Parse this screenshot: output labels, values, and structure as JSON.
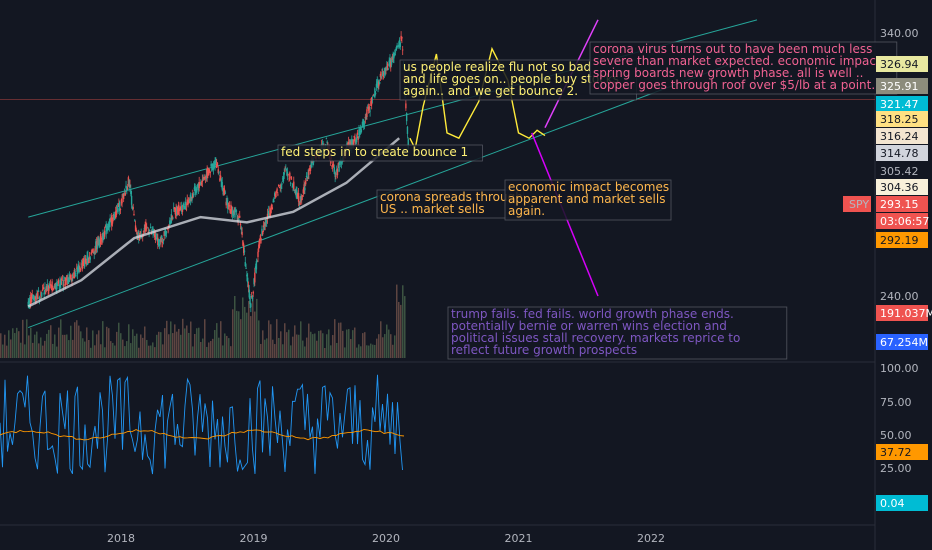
{
  "chart_data": [
    {
      "type": "candlestick",
      "symbol": "SPY",
      "x_ticks": [
        "2018",
        "2019",
        "2020",
        "2021",
        "2022"
      ],
      "y_ticks": [
        240.0,
        340.0
      ],
      "ylim": [
        228,
        346
      ],
      "series": [
        {
          "name": "SPY",
          "values": [
            [
              2017.3,
              238
            ],
            [
              2017.45,
              243
            ],
            [
              2017.6,
              246
            ],
            [
              2017.75,
              254
            ],
            [
              2017.9,
              266
            ],
            [
              2018.0,
              275
            ],
            [
              2018.06,
              284
            ],
            [
              2018.12,
              262
            ],
            [
              2018.2,
              266
            ],
            [
              2018.3,
              260
            ],
            [
              2018.4,
              272
            ],
            [
              2018.5,
              275
            ],
            [
              2018.6,
              283
            ],
            [
              2018.72,
              291
            ],
            [
              2018.8,
              275
            ],
            [
              2018.9,
              269
            ],
            [
              2018.98,
              236
            ],
            [
              2019.05,
              262
            ],
            [
              2019.15,
              276
            ],
            [
              2019.25,
              288
            ],
            [
              2019.35,
              276
            ],
            [
              2019.45,
              292
            ],
            [
              2019.55,
              298
            ],
            [
              2019.62,
              286
            ],
            [
              2019.7,
              296
            ],
            [
              2019.78,
              300
            ],
            [
              2019.88,
              312
            ],
            [
              2019.95,
              322
            ],
            [
              2020.05,
              330
            ],
            [
              2020.12,
              338
            ],
            [
              2020.15,
              313
            ],
            [
              2020.17,
              296
            ]
          ]
        },
        {
          "name": "SMA",
          "values": [
            [
              2017.3,
              236
            ],
            [
              2017.7,
              246
            ],
            [
              2018.1,
              262
            ],
            [
              2018.6,
              270
            ],
            [
              2018.95,
              268
            ],
            [
              2019.3,
              272
            ],
            [
              2019.7,
              283
            ],
            [
              2020.1,
              300
            ]
          ]
        }
      ],
      "projection": [
        [
          2020.18,
          300
        ],
        [
          2020.22,
          296
        ],
        [
          2020.28,
          312
        ],
        [
          2020.38,
          332
        ],
        [
          2020.46,
          302
        ],
        [
          2020.55,
          300
        ],
        [
          2020.7,
          314
        ],
        [
          2020.8,
          334
        ],
        [
          2020.92,
          322
        ],
        [
          2021.0,
          302
        ],
        [
          2021.08,
          300
        ],
        [
          2021.14,
          303
        ],
        [
          2021.2,
          301
        ]
      ],
      "channel_upper": [
        [
          2017.3,
          270
        ],
        [
          2022.8,
          345
        ]
      ],
      "channel_lower": [
        [
          2017.3,
          228
        ],
        [
          2022.8,
          332
        ]
      ],
      "bull_case_line": [
        [
          2021.2,
          304
        ],
        [
          2021.6,
          345
        ]
      ],
      "bear_case_line": [
        [
          2021.1,
          302
        ],
        [
          2021.6,
          240
        ]
      ],
      "horizontal_line": 314.78,
      "price_labels": [
        {
          "value": "340.00",
          "color": ""
        },
        {
          "value": "326.94",
          "color": "#e8e8a0"
        },
        {
          "value": "325.91",
          "color": "#8c8c7c"
        },
        {
          "value": "321.47",
          "color": "#00bcd4"
        },
        {
          "value": "318.25",
          "color": "#ffe082"
        },
        {
          "value": "316.24",
          "color": "#f3e5d0"
        },
        {
          "value": "314.78",
          "color": "#d1d4dc"
        },
        {
          "value": "305.42",
          "color": ""
        },
        {
          "value": "304.36",
          "color": "#f8f0da"
        },
        {
          "value": "293.15",
          "color": "#ef5350"
        },
        {
          "value": "03:06:57",
          "color": "#ef5350"
        },
        {
          "value": "292.19",
          "color": "#ff9800"
        },
        {
          "value": "240.00",
          "color": ""
        },
        {
          "value": "191.037M",
          "color": "#ef5350"
        },
        {
          "value": "67.254M",
          "color": "#2962ff"
        }
      ],
      "symbol_badge": "SPY"
    },
    {
      "type": "line",
      "title": "",
      "y_ticks": [
        100.0,
        75.0,
        50.0,
        25.0
      ],
      "ylim": [
        0,
        100
      ],
      "price_labels": [
        {
          "value": "100.00",
          "color": ""
        },
        {
          "value": "75.00",
          "color": ""
        },
        {
          "value": "50.00",
          "color": ""
        },
        {
          "value": "37.72",
          "color": "#ff9800"
        },
        {
          "value": "25.00",
          "color": ""
        },
        {
          "value": "0.04",
          "color": "#00bcd4"
        }
      ]
    }
  ],
  "annotations": {
    "bounce2": "us people realize flu not so bad\nand life goes on.. people buy stocks\n again.. and we get bounce 2.",
    "fed": "fed steps in to create bounce 1",
    "corona_us": "corona spreads through\nUS .. market sells",
    "econ": "economic impact becomes\napparent and market sells\n again.",
    "bull": "corona virus turns out to have been much less\nsevere than market expected.  economic impact\nspring boards new growth phase.  all is well ..\ncopper goes through roof over $5/lb at a point.",
    "bear": "trump fails.  fed fails. world growth phase ends.\n  potentially bernie or warren wins election and\npolitical issues stall recovery.  markets reprice to\nreflect future growth prospects"
  }
}
